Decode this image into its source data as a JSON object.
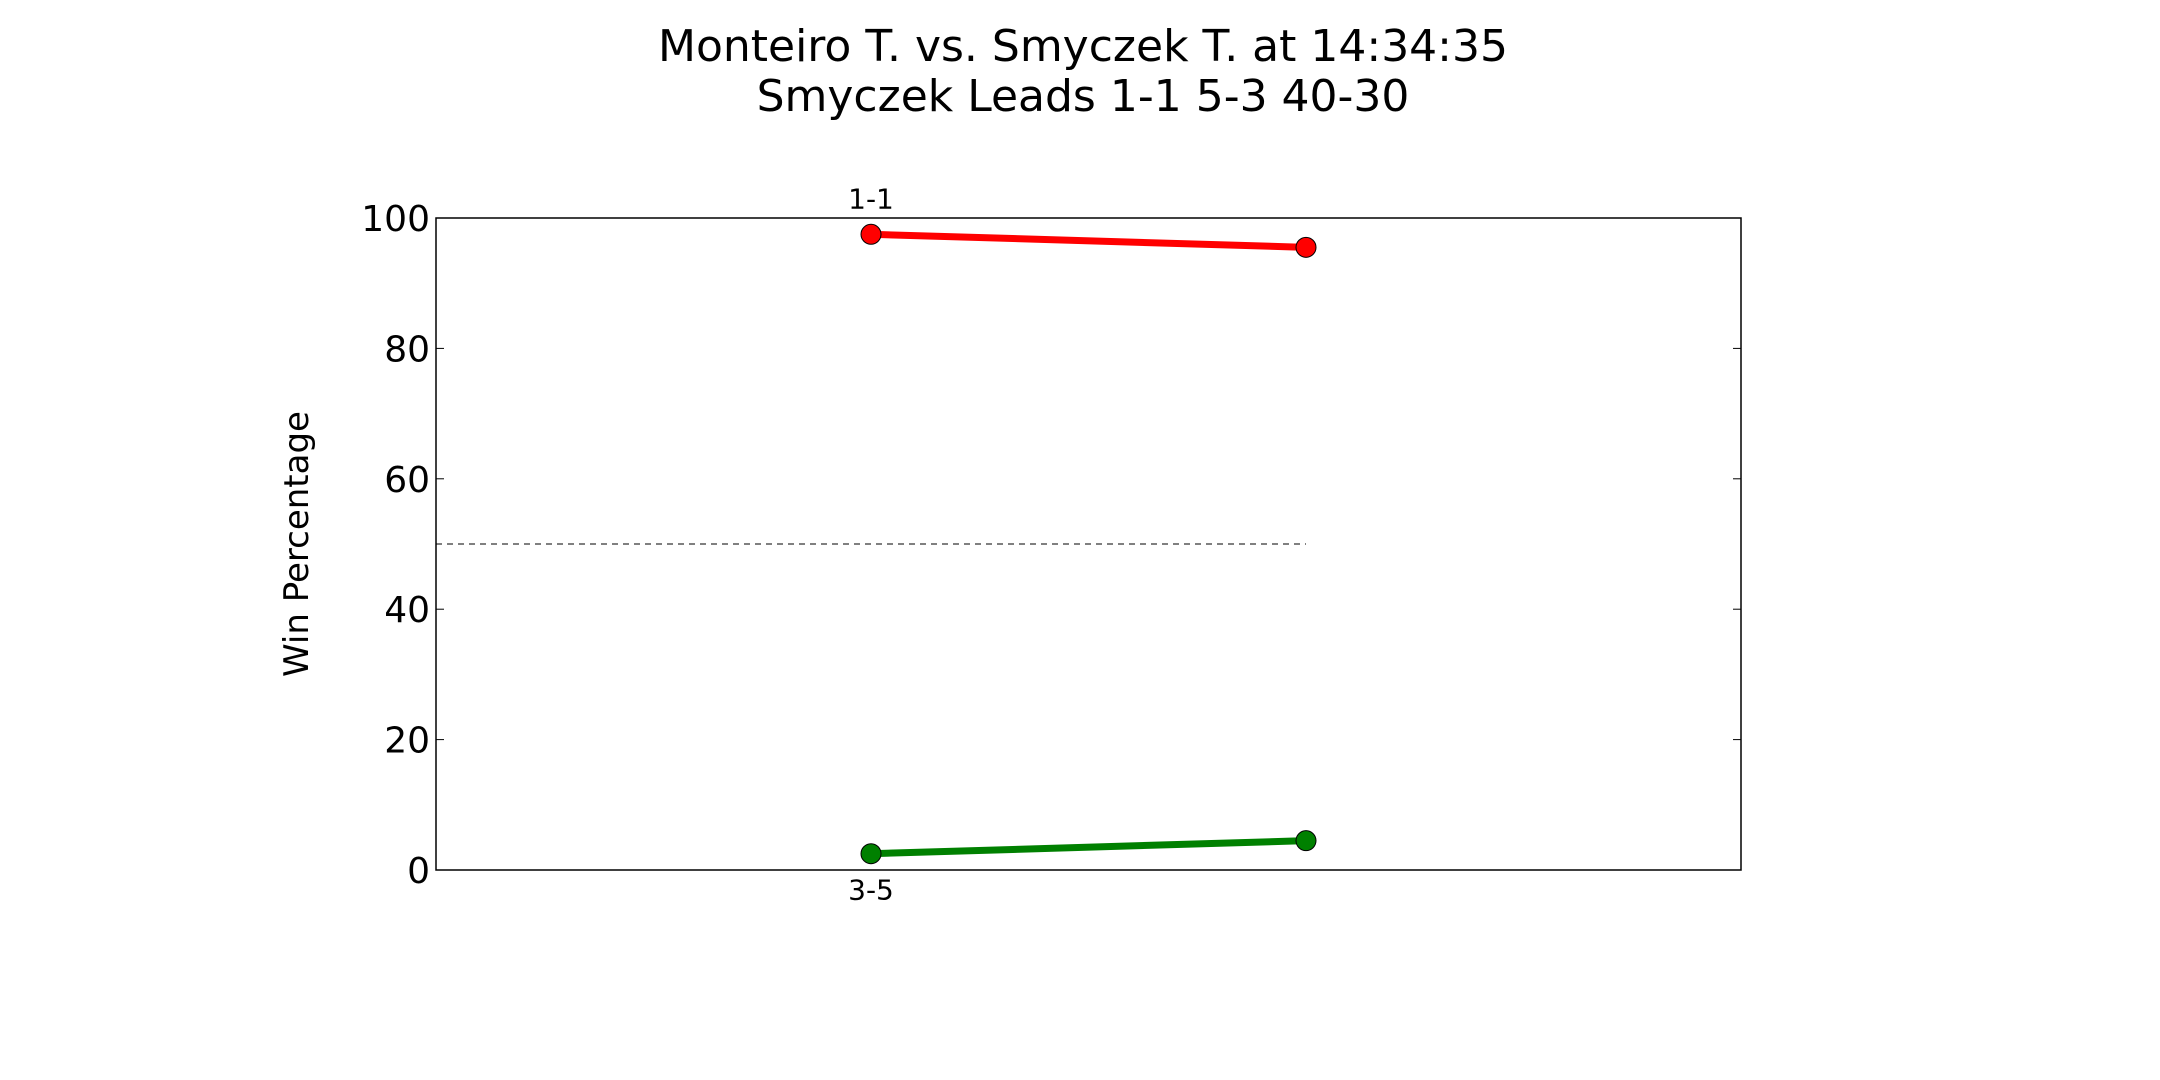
{
  "chart_data": {
    "type": "line",
    "title": "Monteiro T. vs. Smyczek T. at 14:34:35",
    "subtitle": "Smyczek Leads 1-1 5-3 40-30",
    "xlabel": "",
    "ylabel": "Win Percentage",
    "xlim": [
      0,
      3
    ],
    "ylim": [
      0,
      100
    ],
    "yticks": [
      0,
      20,
      40,
      60,
      80,
      100
    ],
    "grid": false,
    "reference_line": {
      "y": 50,
      "x_range": [
        0,
        2
      ],
      "style": "dashed",
      "color": "#808080"
    },
    "series": [
      {
        "color": "#ff0000",
        "x": [
          1,
          2
        ],
        "values": [
          97.5,
          95.5
        ]
      },
      {
        "color": "#008000",
        "x": [
          1,
          2
        ],
        "values": [
          2.5,
          4.5
        ]
      }
    ],
    "annotations": [
      {
        "text": "1-1",
        "x": 1,
        "position": "above-top-series"
      },
      {
        "text": "3-5",
        "x": 1,
        "position": "below-bottom-series"
      }
    ]
  }
}
